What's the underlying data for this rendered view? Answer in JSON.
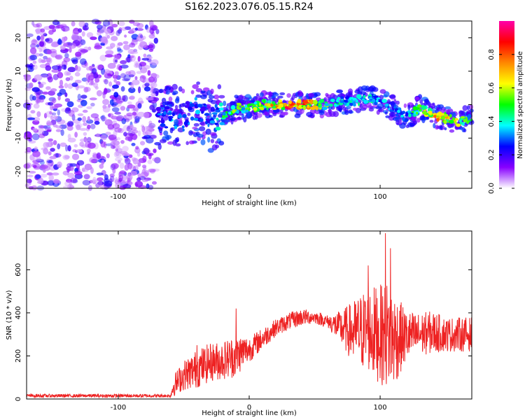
{
  "figure": {
    "title": "S162.2023.076.05.15.R24"
  },
  "chart_data": [
    {
      "type": "heatmap",
      "title": "S162.2023.076.05.15.R24",
      "xlabel": "Height of straight line (km)",
      "ylabel": "Frequency (Hz)",
      "xlim": [
        -170,
        170
      ],
      "ylim": [
        -25,
        25
      ],
      "xticks": [
        -100,
        0,
        100
      ],
      "xtick_labels": [
        "-100",
        "0",
        "100"
      ],
      "yticks": [
        -20,
        -10,
        0,
        10,
        20
      ],
      "ytick_labels": [
        "-20",
        "-10",
        "0",
        "10",
        "20"
      ],
      "colorbar": {
        "label": "Normalized spectral amplitude",
        "range": [
          0,
          1
        ],
        "ticks": [
          0.0,
          0.2,
          0.4,
          0.6,
          0.8
        ],
        "tick_labels": [
          "0.0",
          "0.2",
          "0.4",
          "0.6",
          "0.8"
        ],
        "colormap": [
          "#ffffff",
          "#8800ff",
          "#0000ff",
          "#00ffff",
          "#00ff00",
          "#ffff00",
          "#ff8800",
          "#ff0000",
          "#ff00aa"
        ]
      },
      "noise_region_x": [
        -170,
        -70
      ],
      "ridge": {
        "x": [
          -70,
          -60,
          -50,
          -40,
          -30,
          -20,
          -10,
          0,
          10,
          20,
          30,
          40,
          50,
          60,
          70,
          80,
          90,
          100,
          110,
          120,
          130,
          140,
          150,
          160,
          170
        ],
        "freq": [
          -4,
          -3,
          -4,
          -2,
          -5,
          -3,
          -1,
          -1,
          0,
          0,
          0,
          0,
          0,
          0,
          1,
          1,
          2,
          1,
          -1,
          -4,
          -1,
          -3,
          -4,
          -5,
          -4
        ],
        "amplitude": [
          0.3,
          0.35,
          0.3,
          0.35,
          0.3,
          0.5,
          0.6,
          0.55,
          0.65,
          0.8,
          0.9,
          0.95,
          0.75,
          0.55,
          0.45,
          0.4,
          0.45,
          0.4,
          0.35,
          0.4,
          0.6,
          0.75,
          0.8,
          0.6,
          0.5
        ]
      }
    },
    {
      "type": "line",
      "xlabel": "Height of straight line (km)",
      "ylabel": "SNR (10 * v/v)",
      "xlim": [
        -170,
        170
      ],
      "ylim": [
        0,
        780
      ],
      "xticks": [
        -100,
        0,
        100
      ],
      "xtick_labels": [
        "-100",
        "0",
        "100"
      ],
      "yticks": [
        0,
        200,
        400,
        600
      ],
      "ytick_labels": [
        "0",
        "200",
        "400",
        "600"
      ],
      "series": [
        {
          "name": "SNR",
          "color": "#ee2222",
          "x": [
            -170,
            -60,
            -58,
            -50,
            -40,
            -30,
            -20,
            -10,
            -5,
            0,
            10,
            20,
            30,
            40,
            50,
            60,
            70,
            80,
            90,
            100,
            105,
            110,
            120,
            130,
            140,
            150,
            160,
            170
          ],
          "center": [
            15,
            15,
            60,
            110,
            140,
            170,
            180,
            200,
            220,
            230,
            280,
            330,
            360,
            380,
            380,
            360,
            330,
            310,
            320,
            300,
            300,
            280,
            290,
            300,
            310,
            300,
            300,
            300
          ],
          "spread": [
            8,
            8,
            50,
            70,
            90,
            90,
            90,
            100,
            80,
            60,
            50,
            40,
            40,
            40,
            30,
            30,
            80,
            150,
            200,
            230,
            250,
            230,
            120,
            100,
            100,
            80,
            80,
            80
          ],
          "peaks": [
            {
              "x": -40,
              "y": 250
            },
            {
              "x": -10,
              "y": 420
            },
            {
              "x": 91,
              "y": 620
            },
            {
              "x": 104,
              "y": 770
            },
            {
              "x": 108,
              "y": 700
            }
          ]
        }
      ]
    }
  ]
}
